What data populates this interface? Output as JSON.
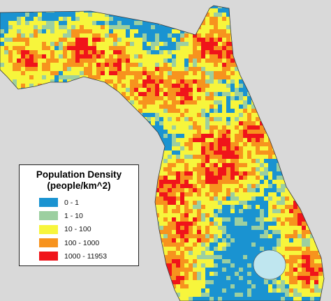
{
  "legend": {
    "title_line1": "Population Density",
    "title_line2": "(people/km^2)",
    "items": [
      {
        "label": "0 - 1",
        "color": "#1a93d1"
      },
      {
        "label": "1 - 10",
        "color": "#9ccfa0"
      },
      {
        "label": "10 - 100",
        "color": "#f7f53c"
      },
      {
        "label": "100 - 1000",
        "color": "#f7931e"
      },
      {
        "label": "1000 - 11953",
        "color": "#f0141a"
      }
    ]
  },
  "map": {
    "background_color": "#d9d9d9",
    "lake_color": "#bfe6ef"
  }
}
